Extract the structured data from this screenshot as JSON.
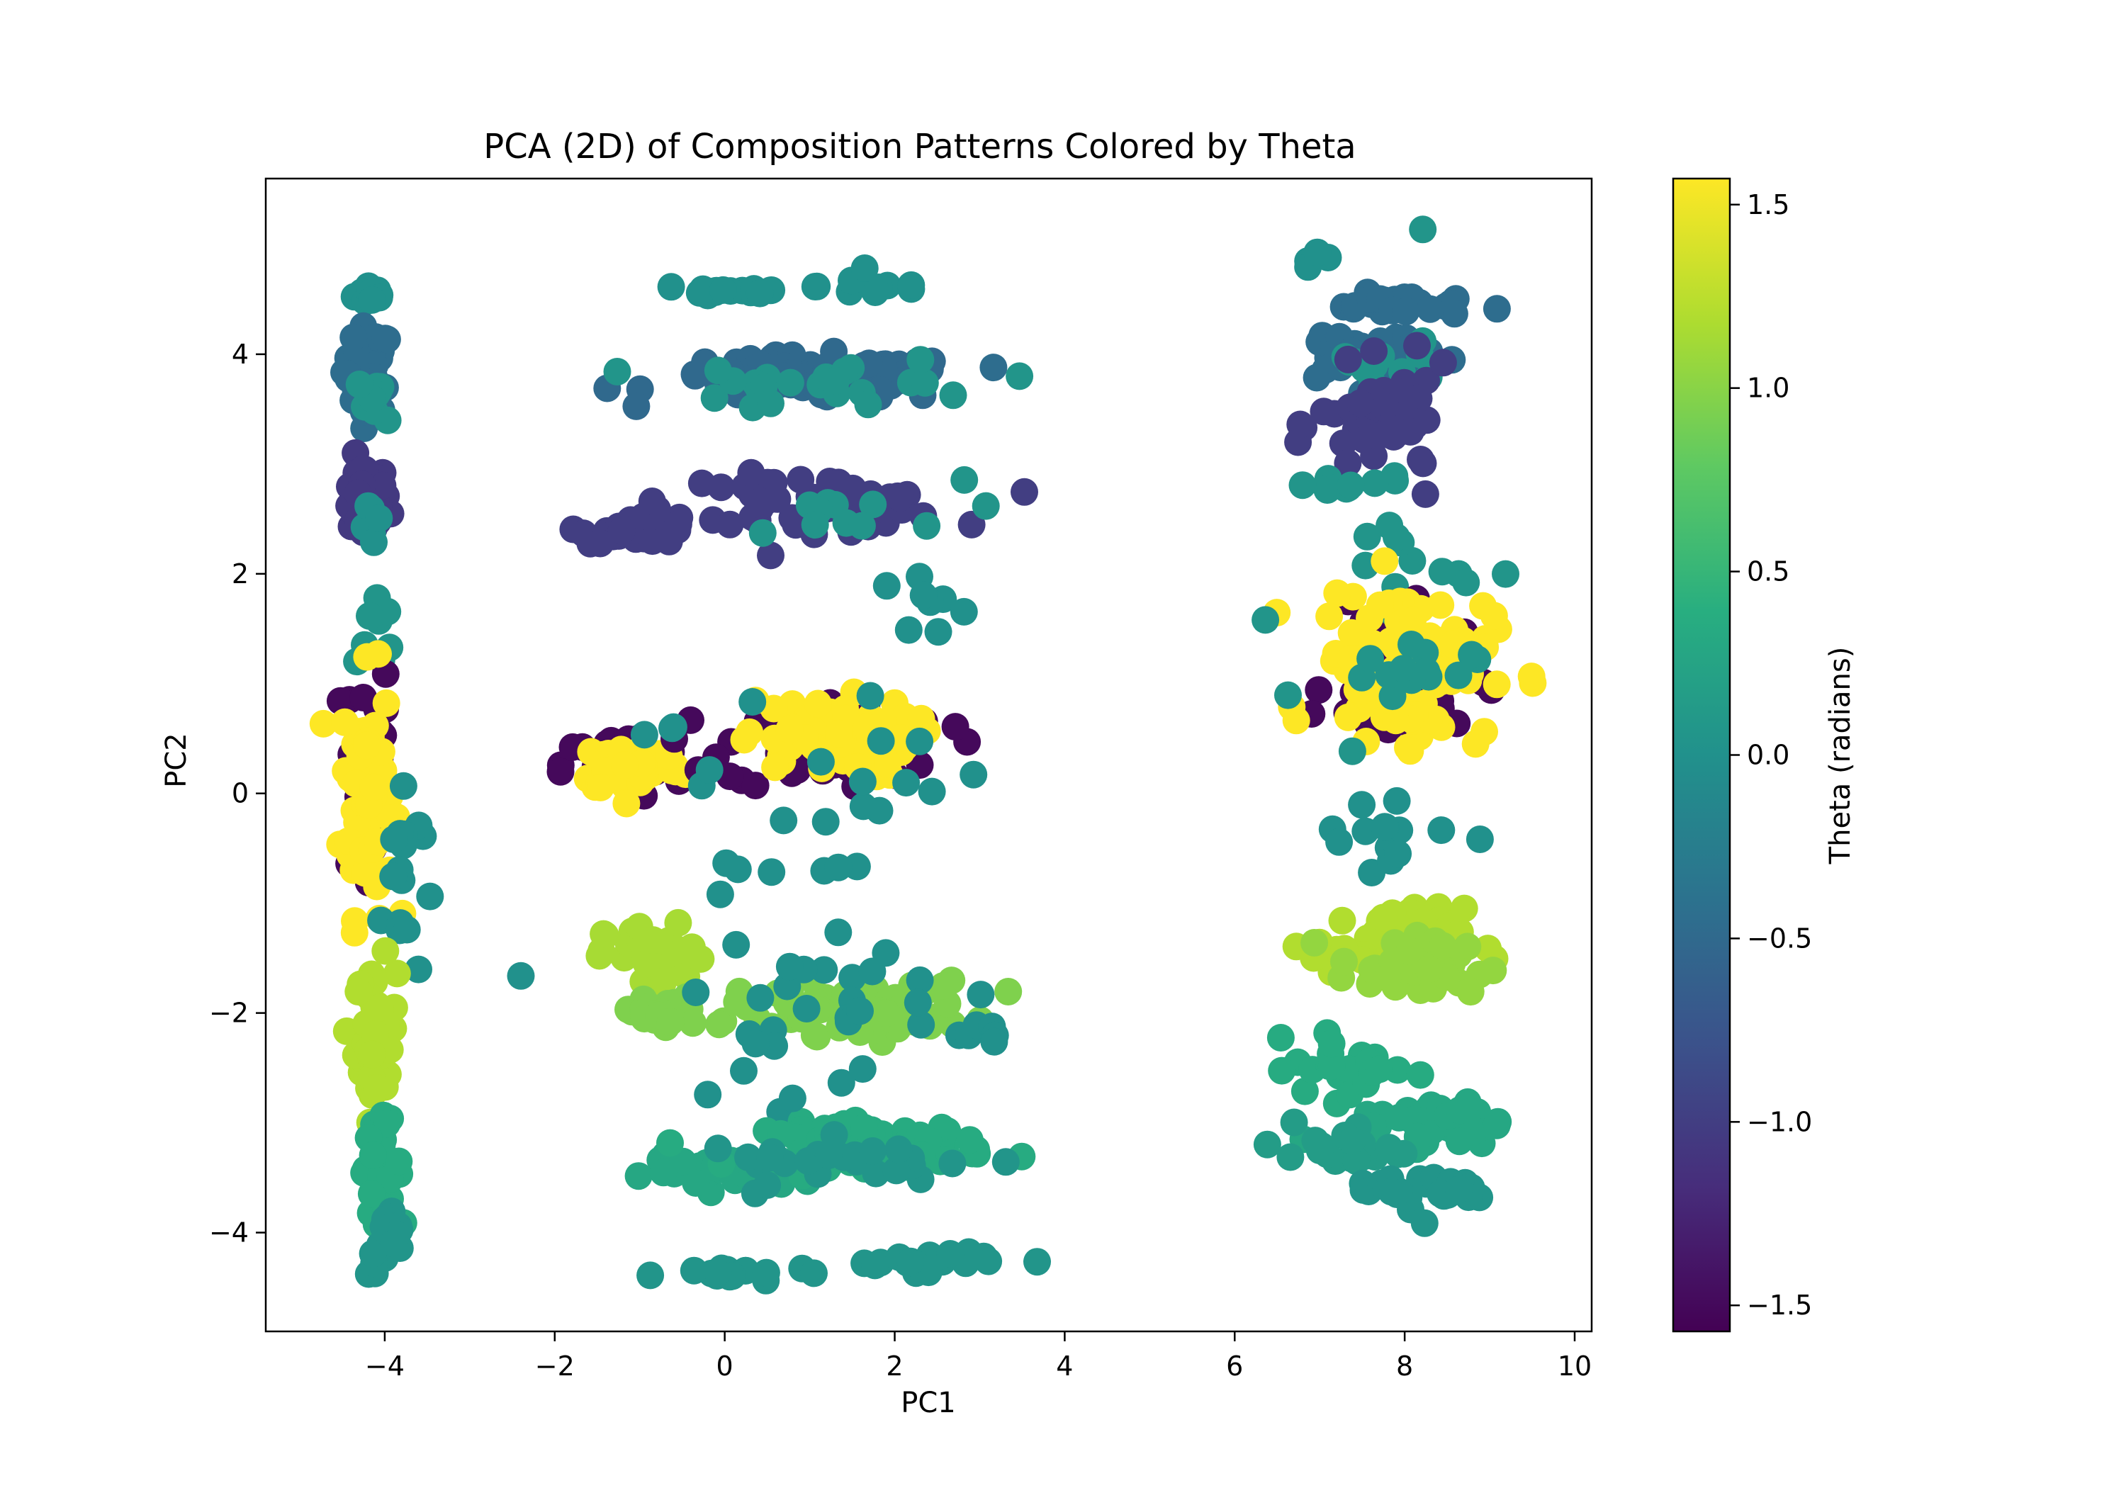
{
  "figure": {
    "title": "PCA (2D) of Composition Patterns Colored by Theta",
    "xlabel": "PC1",
    "ylabel": "PC2",
    "colorbar_label": "Theta (radians)",
    "colormap": "viridis",
    "colormap_stops": [
      "#440154",
      "#472d7b",
      "#3b528b",
      "#2c728e",
      "#21918c",
      "#28ae80",
      "#5ec962",
      "#addc30",
      "#fde725"
    ]
  },
  "chart_data": {
    "type": "scatter",
    "title": "PCA (2D) of Composition Patterns Colored by Theta",
    "xlabel": "PC1",
    "ylabel": "PC2",
    "xlim": [
      -5.4,
      10.2
    ],
    "ylim": [
      -4.9,
      5.6
    ],
    "x_ticks": [
      -4,
      -2,
      0,
      2,
      4,
      6,
      8,
      10
    ],
    "x_tick_labels": [
      "−4",
      "−2",
      "0",
      "2",
      "4",
      "6",
      "8",
      "10"
    ],
    "y_ticks": [
      -4,
      -2,
      0,
      2,
      4
    ],
    "y_tick_labels": [
      "−4",
      "−2",
      "0",
      "2",
      "4"
    ],
    "grid": false,
    "colorbar": {
      "label": "Theta (radians)",
      "range": [
        -1.571,
        1.571
      ],
      "ticks": [
        -1.5,
        -1.0,
        -0.5,
        0.0,
        0.5,
        1.0,
        1.5
      ],
      "tick_labels": [
        "−1.5",
        "−1.0",
        "−0.5",
        "0.0",
        "0.5",
        "1.0",
        "1.5"
      ]
    },
    "clusters": [
      {
        "x": -4.15,
        "y": 4.55,
        "sx": 0.1,
        "sy": 0.05,
        "theta": 0.0,
        "n": 14
      },
      {
        "x": -4.2,
        "y": 3.85,
        "sx": 0.14,
        "sy": 0.2,
        "theta": -0.45,
        "n": 30
      },
      {
        "x": -4.05,
        "y": 3.6,
        "sx": 0.12,
        "sy": 0.1,
        "theta": 0.05,
        "n": 10
      },
      {
        "x": -4.25,
        "y": 2.65,
        "sx": 0.15,
        "sy": 0.18,
        "theta": -1.05,
        "n": 40
      },
      {
        "x": -4.1,
        "y": 2.4,
        "sx": 0.08,
        "sy": 0.1,
        "theta": 0.0,
        "n": 6
      },
      {
        "x": -4.1,
        "y": 1.5,
        "sx": 0.12,
        "sy": 0.2,
        "theta": 0.05,
        "n": 8
      },
      {
        "x": -4.2,
        "y": 0.2,
        "sx": 0.14,
        "sy": 0.6,
        "theta": -1.5,
        "n": 30
      },
      {
        "x": -4.2,
        "y": 0.0,
        "sx": 0.15,
        "sy": 0.55,
        "theta": 1.57,
        "n": 80
      },
      {
        "x": -3.8,
        "y": -0.8,
        "sx": 0.12,
        "sy": 0.5,
        "theta": 0.0,
        "n": 16
      },
      {
        "x": -4.1,
        "y": -2.25,
        "sx": 0.12,
        "sy": 0.35,
        "theta": 1.2,
        "n": 50
      },
      {
        "x": -4.05,
        "y": -3.4,
        "sx": 0.12,
        "sy": 0.2,
        "theta": 0.35,
        "n": 35
      },
      {
        "x": -3.95,
        "y": -4.1,
        "sx": 0.12,
        "sy": 0.15,
        "theta": 0.05,
        "n": 22
      },
      {
        "x": 0.0,
        "y": 4.58,
        "sx": 0.45,
        "sy": 0.04,
        "theta": 0.0,
        "n": 15
      },
      {
        "x": 1.8,
        "y": 4.62,
        "sx": 0.35,
        "sy": 0.05,
        "theta": 0.0,
        "n": 12
      },
      {
        "x": 1.0,
        "y": 3.78,
        "sx": 0.9,
        "sy": 0.1,
        "theta": -0.5,
        "n": 80
      },
      {
        "x": 1.3,
        "y": 3.72,
        "sx": 0.9,
        "sy": 0.12,
        "theta": 0.05,
        "n": 25
      },
      {
        "x": -1.0,
        "y": 2.42,
        "sx": 0.35,
        "sy": 0.07,
        "theta": -1.0,
        "n": 30
      },
      {
        "x": 1.0,
        "y": 2.65,
        "sx": 0.8,
        "sy": 0.12,
        "theta": -1.0,
        "n": 60
      },
      {
        "x": 1.2,
        "y": 2.55,
        "sx": 0.8,
        "sy": 0.15,
        "theta": 0.05,
        "n": 12
      },
      {
        "x": 2.3,
        "y": 1.7,
        "sx": 0.4,
        "sy": 0.2,
        "theta": 0.0,
        "n": 8
      },
      {
        "x": -1.2,
        "y": 0.25,
        "sx": 0.35,
        "sy": 0.15,
        "theta": -1.5,
        "n": 30
      },
      {
        "x": -1.1,
        "y": 0.25,
        "sx": 0.3,
        "sy": 0.12,
        "theta": 1.57,
        "n": 60
      },
      {
        "x": 1.3,
        "y": 0.45,
        "sx": 0.65,
        "sy": 0.2,
        "theta": -1.5,
        "n": 50
      },
      {
        "x": 1.2,
        "y": 0.5,
        "sx": 0.5,
        "sy": 0.18,
        "theta": 1.57,
        "n": 90
      },
      {
        "x": 1.0,
        "y": 0.4,
        "sx": 1.0,
        "sy": 0.35,
        "theta": 0.0,
        "n": 14
      },
      {
        "x": 0.5,
        "y": -0.6,
        "sx": 0.8,
        "sy": 0.35,
        "theta": 0.0,
        "n": 12
      },
      {
        "x": -0.8,
        "y": -1.5,
        "sx": 0.3,
        "sy": 0.15,
        "theta": 1.15,
        "n": 40
      },
      {
        "x": -0.7,
        "y": -2.0,
        "sx": 0.3,
        "sy": 0.08,
        "theta": 0.95,
        "n": 30
      },
      {
        "x": 1.5,
        "y": -1.95,
        "sx": 0.7,
        "sy": 0.12,
        "theta": 0.95,
        "n": 70
      },
      {
        "x": 1.2,
        "y": -1.8,
        "sx": 1.2,
        "sy": 0.35,
        "theta": 0.0,
        "n": 25
      },
      {
        "x": 3.1,
        "y": -2.2,
        "sx": 0.2,
        "sy": 0.05,
        "theta": 0.0,
        "n": 6
      },
      {
        "x": 0.1,
        "y": -3.45,
        "sx": 0.5,
        "sy": 0.07,
        "theta": 0.3,
        "n": 40
      },
      {
        "x": 1.8,
        "y": -3.2,
        "sx": 0.65,
        "sy": 0.1,
        "theta": 0.35,
        "n": 70
      },
      {
        "x": 1.5,
        "y": -3.35,
        "sx": 0.9,
        "sy": 0.1,
        "theta": 0.05,
        "n": 25
      },
      {
        "x": 0.2,
        "y": -4.38,
        "sx": 0.45,
        "sy": 0.04,
        "theta": 0.05,
        "n": 16
      },
      {
        "x": 2.3,
        "y": -4.25,
        "sx": 0.5,
        "sy": 0.05,
        "theta": 0.05,
        "n": 20
      },
      {
        "x": 0.3,
        "y": -2.5,
        "sx": 0.25,
        "sy": 0.2,
        "theta": 0.0,
        "n": 5
      },
      {
        "x": 6.9,
        "y": 4.85,
        "sx": 0.1,
        "sy": 0.08,
        "theta": 0.0,
        "n": 4
      },
      {
        "x": 8.0,
        "y": 4.45,
        "sx": 0.4,
        "sy": 0.05,
        "theta": -0.45,
        "n": 25
      },
      {
        "x": 7.5,
        "y": 4.0,
        "sx": 0.45,
        "sy": 0.15,
        "theta": -0.45,
        "n": 30
      },
      {
        "x": 7.7,
        "y": 3.95,
        "sx": 0.35,
        "sy": 0.15,
        "theta": 0.05,
        "n": 12
      },
      {
        "x": 7.8,
        "y": 3.35,
        "sx": 0.4,
        "sy": 0.25,
        "theta": -1.0,
        "n": 50
      },
      {
        "x": 7.3,
        "y": 2.8,
        "sx": 0.35,
        "sy": 0.05,
        "theta": 0.05,
        "n": 10
      },
      {
        "x": 8.0,
        "y": 2.1,
        "sx": 0.4,
        "sy": 0.25,
        "theta": 0.05,
        "n": 12
      },
      {
        "x": 8.0,
        "y": 1.0,
        "sx": 0.45,
        "sy": 0.3,
        "theta": -1.5,
        "n": 45
      },
      {
        "x": 8.0,
        "y": 1.2,
        "sx": 0.5,
        "sy": 0.35,
        "theta": 1.57,
        "n": 110
      },
      {
        "x": 7.8,
        "y": 0.9,
        "sx": 0.5,
        "sy": 0.3,
        "theta": 0.05,
        "n": 15
      },
      {
        "x": 7.6,
        "y": -0.35,
        "sx": 0.45,
        "sy": 0.25,
        "theta": 0.0,
        "n": 14
      },
      {
        "x": 7.8,
        "y": -1.35,
        "sx": 0.45,
        "sy": 0.15,
        "theta": 1.2,
        "n": 45
      },
      {
        "x": 8.1,
        "y": -1.6,
        "sx": 0.45,
        "sy": 0.15,
        "theta": 1.05,
        "n": 40
      },
      {
        "x": 7.4,
        "y": -2.5,
        "sx": 0.35,
        "sy": 0.15,
        "theta": 0.35,
        "n": 30
      },
      {
        "x": 8.3,
        "y": -3.0,
        "sx": 0.45,
        "sy": 0.1,
        "theta": 0.3,
        "n": 40
      },
      {
        "x": 7.3,
        "y": -3.25,
        "sx": 0.35,
        "sy": 0.1,
        "theta": 0.15,
        "n": 20
      },
      {
        "x": 8.3,
        "y": -3.6,
        "sx": 0.45,
        "sy": 0.08,
        "theta": 0.05,
        "n": 25
      },
      {
        "x": 8.2,
        "y": 5.15,
        "sx": 0.02,
        "sy": 0.02,
        "theta": 0.05,
        "n": 1
      },
      {
        "x": 3.15,
        "y": 3.88,
        "sx": 0.02,
        "sy": 0.02,
        "theta": -0.45,
        "n": 1
      },
      {
        "x": 9.45,
        "y": 1.1,
        "sx": 0.05,
        "sy": 0.05,
        "theta": 1.57,
        "n": 2
      },
      {
        "x": 6.35,
        "y": 1.57,
        "sx": 0.02,
        "sy": 0.02,
        "theta": 0.05,
        "n": 1
      },
      {
        "x": 8.25,
        "y": -3.9,
        "sx": 0.02,
        "sy": 0.02,
        "theta": 0.05,
        "n": 1
      },
      {
        "x": 6.7,
        "y": -3.0,
        "sx": 0.03,
        "sy": 0.03,
        "theta": 0.15,
        "n": 1
      }
    ]
  }
}
